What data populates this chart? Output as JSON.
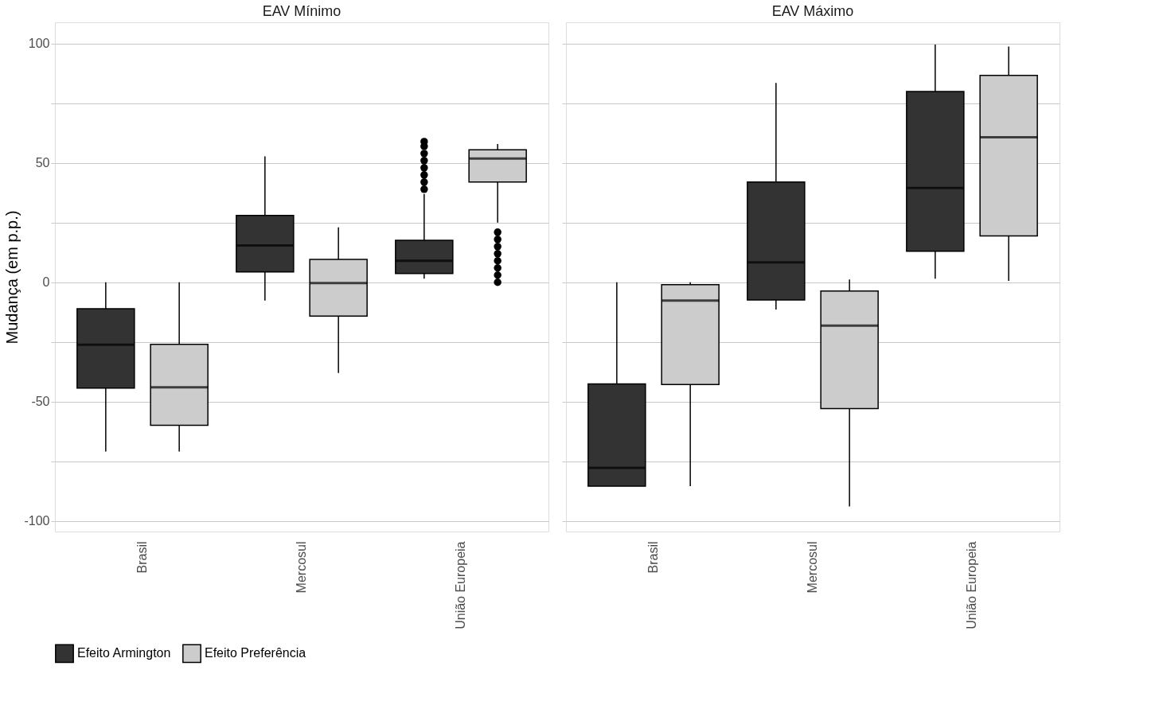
{
  "chart_data": [
    {
      "type": "box",
      "title": "EAV Mínimo",
      "ylabel": "Mudança (em p.p.)",
      "categories": [
        "Brasil",
        "Mercosul",
        "União Europeia"
      ],
      "ylim": [
        -104.5,
        109
      ],
      "yticks": [
        -100,
        {
          "value": -75,
          "label": null
        },
        -50,
        {
          "value": -25,
          "label": null
        },
        0,
        {
          "value": 25,
          "label": null
        },
        50,
        {
          "value": 75,
          "label": null
        },
        100
      ],
      "grid": "y",
      "legend": "bottom",
      "series": [
        {
          "name": "Efeito Armington",
          "color": "#333333",
          "boxes": [
            {
              "low": -71,
              "q1": -44.4,
              "median": -26.2,
              "q3": -11.1,
              "high": 0
            },
            {
              "low": -7.7,
              "q1": 4.3,
              "median": 15.4,
              "q3": 28,
              "high": 52.8
            },
            {
              "low": 1.5,
              "q1": 3.7,
              "median": 9,
              "q3": 17.6,
              "high": 37,
              "outliers": [
                39,
                42,
                45,
                48,
                51,
                54,
                57,
                59
              ]
            }
          ]
        },
        {
          "name": "Efeito Preferência",
          "color": "#cccccc",
          "boxes": [
            {
              "low": -71,
              "q1": -60,
              "median": -44,
              "q3": -26,
              "high": 0
            },
            {
              "low": -38,
              "q1": -14.2,
              "median": -0.3,
              "q3": 9.6,
              "high": 23
            },
            {
              "low": 25,
              "q1": 42,
              "median": 51.9,
              "q3": 55.5,
              "high": 58,
              "outliers": [
                0,
                3,
                6,
                9,
                12,
                15,
                18,
                21
              ]
            }
          ]
        }
      ]
    },
    {
      "type": "box",
      "title": "EAV Máximo",
      "categories": [
        "Brasil",
        "Mercosul",
        "União Europeia"
      ],
      "ylim": [
        -104.5,
        109
      ],
      "yticks": [
        -100,
        {
          "value": -75,
          "label": null
        },
        -50,
        {
          "value": -25,
          "label": null
        },
        0,
        {
          "value": 25,
          "label": null
        },
        50,
        {
          "value": 75,
          "label": null
        },
        100
      ],
      "grid": "y",
      "legend": "bottom",
      "tick_labels": "x",
      "series": [
        {
          "name": "Efeito Armington",
          "color": "#333333",
          "boxes": [
            {
              "low": -85.5,
              "q1": -85.5,
              "median": -77.8,
              "q3": -42.6,
              "high": 0
            },
            {
              "low": -11.4,
              "q1": -7.4,
              "median": 8.3,
              "q3": 42,
              "high": 83.6
            },
            {
              "low": 1.5,
              "q1": 13,
              "median": 39.5,
              "q3": 80,
              "high": 99.7
            }
          ]
        },
        {
          "name": "Efeito Preferência",
          "color": "#cccccc",
          "boxes": [
            {
              "low": -85.5,
              "q1": -42.9,
              "median": -7.7,
              "q3": -1,
              "high": 0
            },
            {
              "low": -94,
              "q1": -53,
              "median": -18.2,
              "q3": -3.7,
              "high": 1.2
            },
            {
              "low": 0.6,
              "q1": 19.4,
              "median": 60.8,
              "q3": 86.7,
              "high": 98.8
            }
          ]
        }
      ]
    }
  ]
}
